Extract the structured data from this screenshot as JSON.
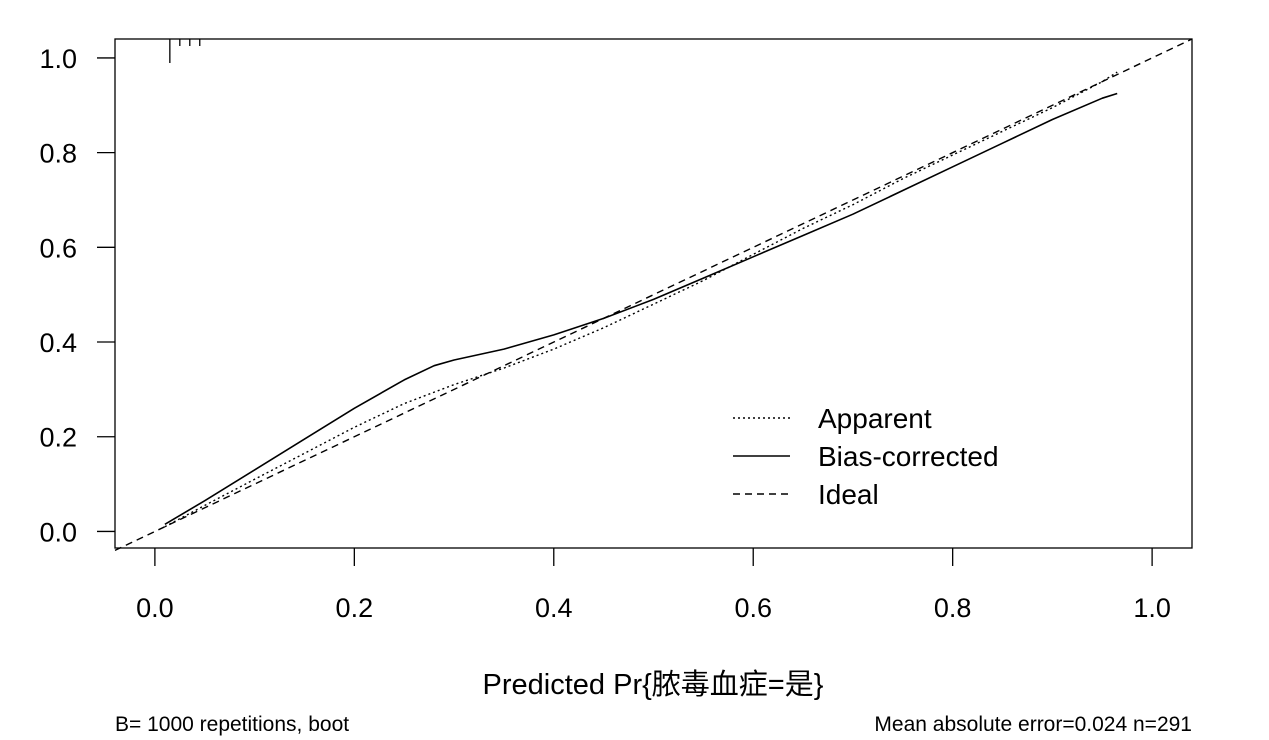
{
  "chart_data": {
    "type": "line",
    "title": "",
    "xlabel": "Predicted Pr{脓毒血症=是}",
    "ylabel": "",
    "xlim": [
      -0.04,
      1.04
    ],
    "ylim": [
      -0.035,
      1.04
    ],
    "grid": false,
    "legend_position": "center-right",
    "x_ticks": [
      "0.0",
      "0.2",
      "0.4",
      "0.6",
      "0.8",
      "1.0"
    ],
    "y_ticks": [
      "0.0",
      "0.2",
      "0.4",
      "0.6",
      "0.8",
      "1.0"
    ],
    "series": [
      {
        "name": "Apparent",
        "style": "dotted",
        "x": [
          0.01,
          0.05,
          0.1,
          0.15,
          0.2,
          0.25,
          0.3,
          0.35,
          0.4,
          0.45,
          0.5,
          0.55,
          0.6,
          0.65,
          0.7,
          0.75,
          0.8,
          0.85,
          0.9,
          0.95,
          0.965
        ],
        "y": [
          0.01,
          0.055,
          0.11,
          0.165,
          0.22,
          0.27,
          0.31,
          0.345,
          0.385,
          0.43,
          0.48,
          0.53,
          0.585,
          0.64,
          0.69,
          0.745,
          0.795,
          0.845,
          0.895,
          0.95,
          0.97
        ]
      },
      {
        "name": "Bias-corrected",
        "style": "solid",
        "x": [
          0.01,
          0.05,
          0.1,
          0.15,
          0.2,
          0.25,
          0.28,
          0.3,
          0.35,
          0.4,
          0.45,
          0.5,
          0.55,
          0.6,
          0.65,
          0.7,
          0.75,
          0.8,
          0.85,
          0.9,
          0.95,
          0.965
        ],
        "y": [
          0.015,
          0.065,
          0.13,
          0.195,
          0.26,
          0.32,
          0.35,
          0.362,
          0.385,
          0.415,
          0.45,
          0.49,
          0.535,
          0.58,
          0.625,
          0.67,
          0.72,
          0.77,
          0.82,
          0.87,
          0.915,
          0.925
        ]
      },
      {
        "name": "Ideal",
        "style": "dashed",
        "x": [
          -0.04,
          1.04
        ],
        "y": [
          -0.04,
          1.04
        ]
      }
    ],
    "rug": [
      0.015,
      0.025,
      0.035,
      0.045
    ],
    "legend": [
      "Apparent",
      "Bias-corrected",
      "Ideal"
    ]
  },
  "footer": {
    "left": "B= 1000 repetitions, boot",
    "right": "Mean absolute error=0.024 n=291"
  }
}
